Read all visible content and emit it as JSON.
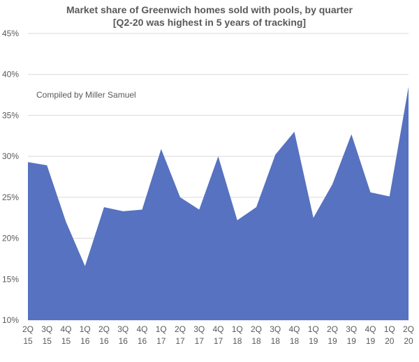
{
  "chart_data": {
    "type": "area",
    "title": "Market share of Greenwich homes sold with pools, by quarter",
    "subtitle": "[Q2-20 was highest in 5 years of tracking]",
    "annotation": "Compiled by Miller Samuel",
    "ylim": [
      10,
      45
    ],
    "yticks": [
      10,
      15,
      20,
      25,
      30,
      35,
      40,
      45
    ],
    "ytick_suffix": "%",
    "grid": true,
    "fill_color": "#5672C0",
    "categories": [
      [
        "2Q",
        "15"
      ],
      [
        "3Q",
        "15"
      ],
      [
        "4Q",
        "15"
      ],
      [
        "1Q",
        "16"
      ],
      [
        "2Q",
        "16"
      ],
      [
        "3Q",
        "16"
      ],
      [
        "4Q",
        "16"
      ],
      [
        "1Q",
        "17"
      ],
      [
        "2Q",
        "17"
      ],
      [
        "3Q",
        "17"
      ],
      [
        "4Q",
        "17"
      ],
      [
        "1Q",
        "18"
      ],
      [
        "2Q",
        "18"
      ],
      [
        "3Q",
        "18"
      ],
      [
        "4Q",
        "18"
      ],
      [
        "1Q",
        "19"
      ],
      [
        "2Q",
        "19"
      ],
      [
        "3Q",
        "19"
      ],
      [
        "4Q",
        "19"
      ],
      [
        "1Q",
        "20"
      ],
      [
        "2Q",
        "20"
      ]
    ],
    "values": [
      29.3,
      28.9,
      22.0,
      16.6,
      23.8,
      23.3,
      23.5,
      30.9,
      25.0,
      23.5,
      30.0,
      22.2,
      23.8,
      30.2,
      33.0,
      22.5,
      26.6,
      32.7,
      25.6,
      25.1,
      38.5
    ]
  }
}
